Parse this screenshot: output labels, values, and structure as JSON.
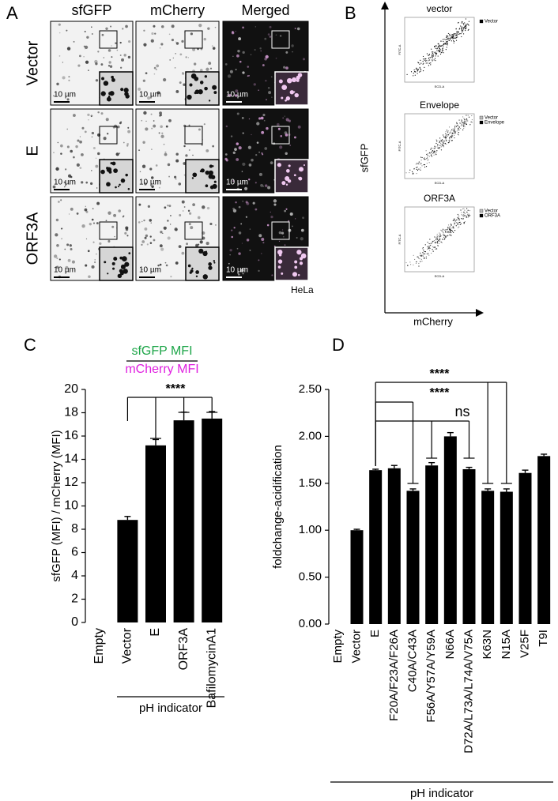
{
  "panel_a": {
    "label": "A",
    "columns": [
      "sfGFP",
      "mCherry",
      "Merged"
    ],
    "rows": [
      "Vector",
      "E",
      "ORF3A"
    ],
    "scale_bar": "10 µm",
    "cell_line": "HeLa"
  },
  "panel_b": {
    "label": "B",
    "y_label": "sfGFP",
    "x_label": "mCherry",
    "plot_y_axis": "FITC-A",
    "plot_x_axis": "ECD-A",
    "plots": [
      {
        "title": "vector",
        "legend": [
          "Vector"
        ]
      },
      {
        "title": "Envelope",
        "legend": [
          "Vector",
          "Envelope"
        ]
      },
      {
        "title": "ORF3A",
        "legend": [
          "Vector",
          "ORF3A"
        ]
      }
    ]
  },
  "chart_data": [
    {
      "type": "bar",
      "panel": "C",
      "ratio_numerator": "sfGFP MFI",
      "ratio_denominator": "mCherry MFI",
      "numerator_color": "#1fa64a",
      "denominator_color": "#e020e0",
      "y_label": "sfGFP (MFI) / mCherry (MFI)",
      "categories": [
        "Empty",
        "Vector",
        "E",
        "ORF3A",
        "BafilomycinA1"
      ],
      "values": [
        null,
        8.8,
        15.2,
        17.35,
        17.5
      ],
      "errors": [
        null,
        0.3,
        0.5,
        0.7,
        0.6
      ],
      "color": "#000000",
      "ylim": [
        0,
        20
      ],
      "yticks": [
        0,
        2,
        4,
        6,
        8,
        10,
        12,
        14,
        16,
        18,
        20
      ],
      "annotations": [
        "****"
      ],
      "group_label": "pH indicator"
    },
    {
      "type": "bar",
      "panel": "D",
      "y_label": "foldchange-acidification",
      "categories": [
        "Empty",
        "Vector",
        "E",
        "F20A/F23A/F26A",
        "C40A/C43A",
        "F56A/Y57A/Y59A",
        "N66A",
        "D72A/L73A/L74A/V75A",
        "K63N",
        "N15A",
        "V25F",
        "T9I"
      ],
      "values": [
        null,
        1.0,
        1.64,
        1.66,
        1.42,
        1.69,
        2.0,
        1.65,
        1.42,
        1.41,
        1.61,
        1.79
      ],
      "errors": [
        null,
        0.01,
        0.01,
        0.03,
        0.02,
        0.03,
        0.04,
        0.02,
        0.02,
        0.03,
        0.03,
        0.02
      ],
      "color": "#000000",
      "ylim": [
        0,
        2.5
      ],
      "yticks": [
        {
          "value": 0,
          "label": "0.00"
        },
        {
          "value": 0.5,
          "label": "0.50"
        },
        {
          "value": 1,
          "label": "1.00"
        },
        {
          "value": 1.5,
          "label": "1.50"
        },
        {
          "value": 2,
          "label": "2.00"
        },
        {
          "value": 2.5,
          "label": "2.50"
        }
      ],
      "annotations": [
        "****",
        "****",
        "ns"
      ],
      "group_label": "pH indicator"
    }
  ]
}
